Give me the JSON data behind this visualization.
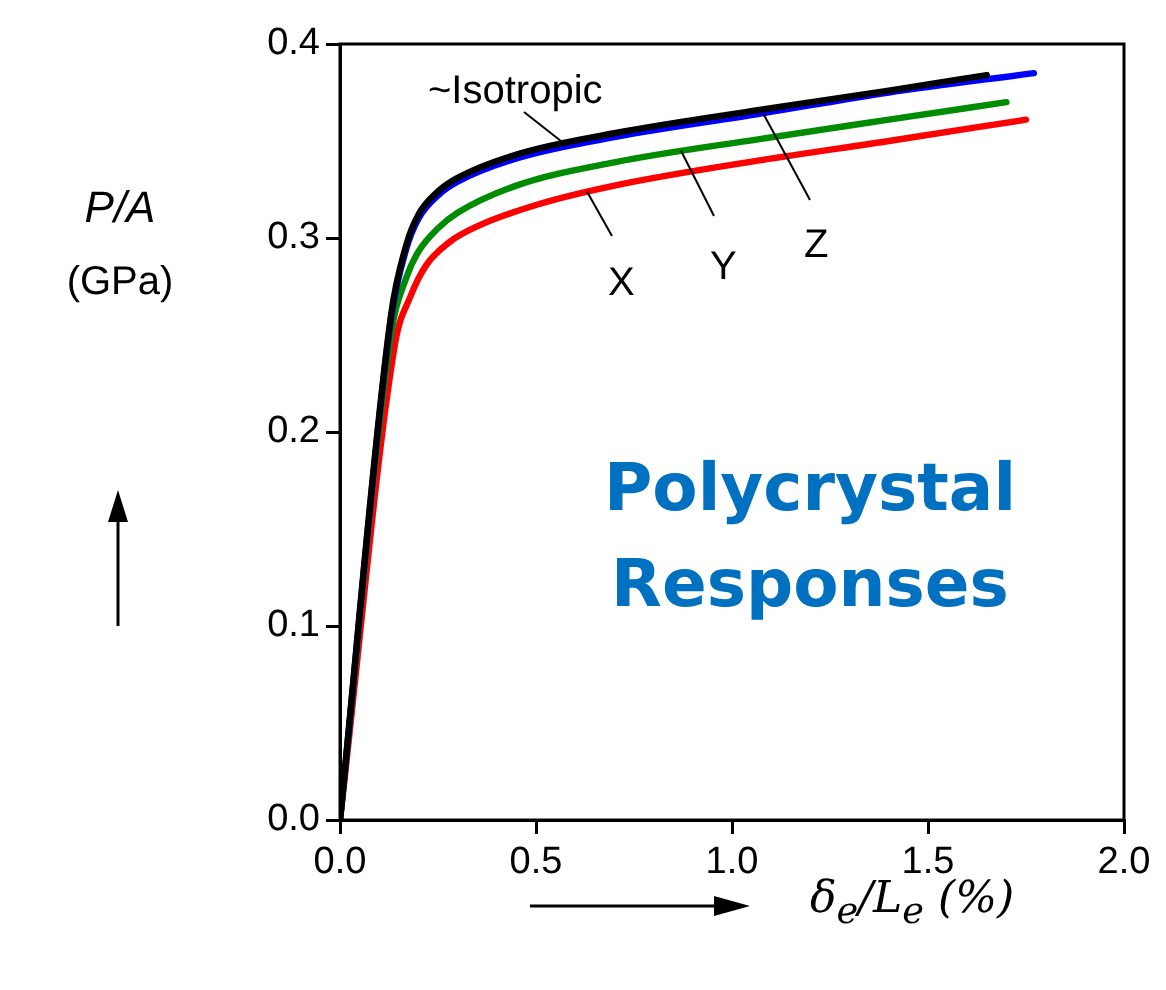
{
  "chart_data": {
    "type": "line",
    "xlabel": "δ$_{e}$/L$_{e}$  (%)",
    "ylabel": "P/A (GPa)",
    "annotations": [
      "Polycrystal Responses",
      {
        "text": "~Isotropic",
        "x": 0.57,
        "y": 0.349
      },
      {
        "text": "Z",
        "x": 1.08,
        "y": 0.364
      },
      {
        "text": "Y",
        "x": 0.87,
        "y": 0.345
      },
      {
        "text": "X",
        "x": 0.63,
        "y": 0.324
      }
    ],
    "xlim": [
      0,
      2
    ],
    "xticks": [
      {
        "value": 0,
        "label": "0.0"
      },
      {
        "value": 0.5,
        "label": "0.5"
      },
      {
        "value": 1,
        "label": "1.0"
      },
      {
        "value": 1.5,
        "label": "1.5"
      },
      {
        "value": 2,
        "label": "2.0"
      }
    ],
    "ylim": [
      0,
      0.4
    ],
    "yticks": [
      {
        "value": 0,
        "label": "0.0"
      },
      {
        "value": 0.1,
        "label": "0.1"
      },
      {
        "value": 0.2,
        "label": "0.2"
      },
      {
        "value": 0.3,
        "label": "0.3"
      },
      {
        "value": 0.4,
        "label": "0.4"
      }
    ],
    "grid": false,
    "legend": false,
    "marker": "none",
    "line_style": "solid",
    "series": [
      {
        "color": "#000000",
        "x": [
          0,
          0.13,
          0.17,
          0.2,
          0.25,
          0.3,
          0.45,
          0.7,
          1.07,
          1.4,
          1.65
        ],
        "values": [
          0,
          0.26,
          0.297,
          0.312,
          0.324,
          0.331,
          0.343,
          0.354,
          0.366,
          0.376,
          0.384
        ]
      },
      {
        "color": "#0000ff",
        "x": [
          0,
          0.13,
          0.17,
          0.2,
          0.25,
          0.3,
          0.45,
          0.7,
          1.07,
          1.4,
          1.77
        ],
        "values": [
          0,
          0.258,
          0.295,
          0.31,
          0.322,
          0.329,
          0.341,
          0.352,
          0.364,
          0.375,
          0.385
        ]
      },
      {
        "color": "#008c00",
        "x": [
          0,
          0.13,
          0.17,
          0.2,
          0.25,
          0.3,
          0.45,
          0.7,
          1.07,
          1.4,
          1.7
        ],
        "values": [
          0,
          0.25,
          0.28,
          0.293,
          0.305,
          0.313,
          0.327,
          0.339,
          0.351,
          0.361,
          0.37
        ]
      },
      {
        "color": "#ff0000",
        "x": [
          0,
          0.14,
          0.18,
          0.22,
          0.28,
          0.35,
          0.5,
          0.7,
          1.07,
          1.4,
          1.75
        ],
        "values": [
          0,
          0.245,
          0.27,
          0.286,
          0.298,
          0.306,
          0.317,
          0.327,
          0.34,
          0.35,
          0.361
        ]
      }
    ]
  }
}
